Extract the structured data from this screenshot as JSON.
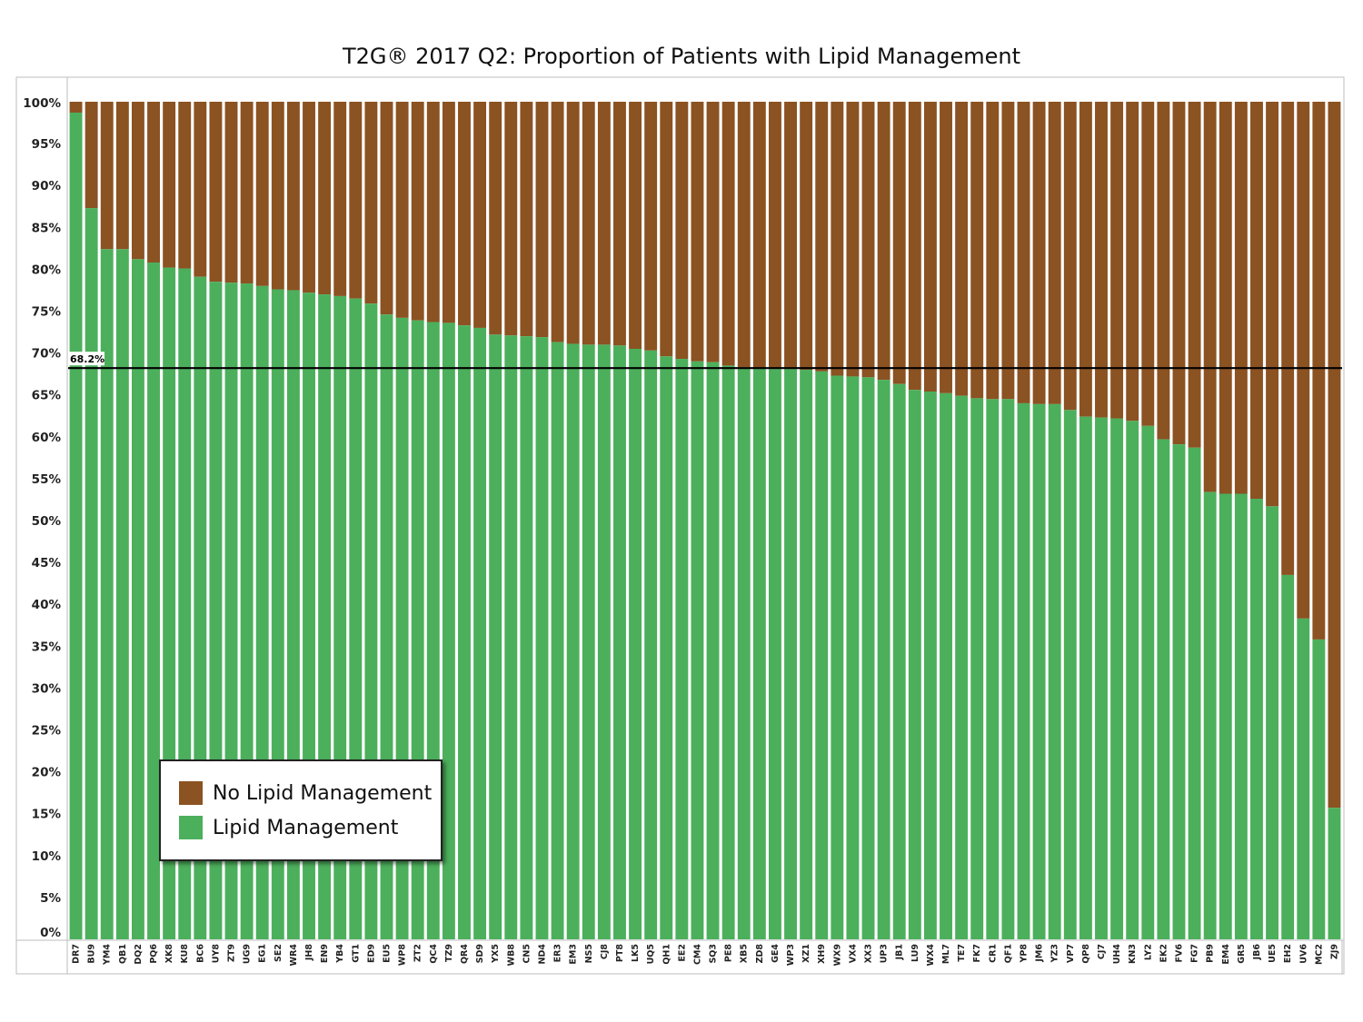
{
  "chart_data": {
    "type": "bar",
    "stacked": true,
    "title": "T2G® 2017 Q2: Proportion of Patients with Lipid Management",
    "xlabel": "",
    "ylabel": "",
    "ylim": [
      0,
      100
    ],
    "y_ticks": [
      "0%",
      "5%",
      "10%",
      "15%",
      "20%",
      "25%",
      "30%",
      "35%",
      "40%",
      "45%",
      "50%",
      "55%",
      "60%",
      "65%",
      "70%",
      "75%",
      "80%",
      "85%",
      "90%",
      "95%",
      "100%"
    ],
    "categories": [
      "DR7",
      "BU9",
      "YM4",
      "QB1",
      "DQ2",
      "PQ6",
      "XK8",
      "KU8",
      "BC6",
      "UY8",
      "ZT9",
      "UG9",
      "EG1",
      "SE2",
      "WR4",
      "JH8",
      "EN9",
      "YB4",
      "GT1",
      "ED9",
      "EU5",
      "WP8",
      "ZT2",
      "QC4",
      "TZ9",
      "QR4",
      "SD9",
      "YX5",
      "WB8",
      "CN5",
      "ND4",
      "ER3",
      "EM3",
      "NS5",
      "CJ8",
      "PT8",
      "LK5",
      "UQ5",
      "QH1",
      "EE2",
      "CM4",
      "SQ3",
      "PE8",
      "XB5",
      "ZD8",
      "GE4",
      "WP3",
      "XZ1",
      "XH9",
      "WX9",
      "VX4",
      "XX3",
      "UP3",
      "JB1",
      "LU9",
      "WX4",
      "ML7",
      "TE7",
      "FK7",
      "CR1",
      "QF1",
      "YP8",
      "JM6",
      "YZ3",
      "VP7",
      "QP8",
      "CJ7",
      "UH4",
      "KN3",
      "LY2",
      "EK2",
      "FV6",
      "FG7",
      "PB9",
      "EM4",
      "GR5",
      "JB6",
      "UE5",
      "EH2",
      "UV6",
      "MC2",
      "ZJ9"
    ],
    "series": [
      {
        "name": "Lipid Management",
        "color": "#4caf5c",
        "values": [
          98.7,
          87.3,
          82.4,
          82.4,
          81.2,
          80.8,
          80.2,
          80.1,
          79.1,
          78.5,
          78.4,
          78.3,
          78.0,
          77.6,
          77.5,
          77.2,
          77.0,
          76.8,
          76.5,
          75.9,
          74.6,
          74.2,
          73.9,
          73.7,
          73.6,
          73.3,
          73.0,
          72.2,
          72.1,
          72.0,
          71.9,
          71.3,
          71.1,
          71.0,
          71.0,
          70.9,
          70.5,
          70.3,
          69.6,
          69.3,
          69.0,
          68.9,
          68.5,
          68.3,
          68.2,
          68.1,
          68.1,
          68.0,
          67.8,
          67.3,
          67.2,
          67.1,
          66.8,
          66.3,
          65.6,
          65.4,
          65.2,
          64.9,
          64.6,
          64.5,
          64.5,
          64.0,
          63.9,
          63.9,
          63.2,
          62.4,
          62.3,
          62.2,
          61.9,
          61.3,
          59.7,
          59.1,
          58.7,
          53.4,
          53.2,
          53.2,
          52.6,
          51.7,
          43.5,
          38.3,
          35.8,
          15.7
        ]
      },
      {
        "name": "No Lipid Management",
        "color": "#8b5222"
      }
    ],
    "reference_line": {
      "value": 68.2,
      "label": "68.2%",
      "color": "#000000"
    },
    "legend_placement": "bottom-left, inside plot",
    "grid": false
  },
  "legend": {
    "no_lipid_label": "No Lipid Management",
    "lipid_label": "Lipid Management",
    "no_lipid_color": "#8b5222",
    "lipid_color": "#4caf5c"
  }
}
